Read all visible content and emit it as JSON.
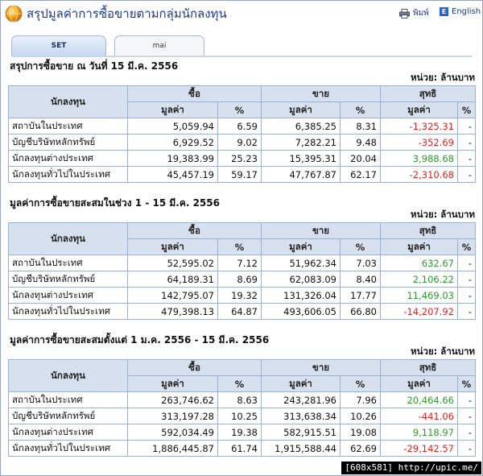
{
  "header": {
    "title": "สรุปมูลค่าการซื้อขายตามกลุ่มนักลงทุน",
    "print_label": "พิมพ์",
    "english_label": "English",
    "english_icon_letter": "E",
    "icons": [
      "globe-icon",
      "printer-icon",
      "english-flag-icon"
    ]
  },
  "tabs": [
    {
      "label": "SET",
      "active": true
    },
    {
      "label": "mai",
      "active": false
    }
  ],
  "columns": {
    "investor": "นักลงทุน",
    "buy": "ซื้อ",
    "sell": "ขาย",
    "net": "สุทธิ",
    "value": "มูลค่า",
    "pct": "%"
  },
  "sections": [
    {
      "title": "สรุปการซื้อขาย ณ วันที่ 15 มี.ค. 2556",
      "unit": "หน่วย: ล้านบาท",
      "rows": [
        {
          "name": "สถาบันในประเทศ",
          "buy": "5,059.94",
          "buy_pct": "6.59",
          "sell": "6,385.25",
          "sell_pct": "8.31",
          "net": "-1,325.31",
          "net_pct": "-"
        },
        {
          "name": "บัญชีบริษัทหลักทรัพย์",
          "buy": "6,929.52",
          "buy_pct": "9.02",
          "sell": "7,282.21",
          "sell_pct": "9.48",
          "net": "-352.69",
          "net_pct": "-"
        },
        {
          "name": "นักลงทุนต่างประเทศ",
          "buy": "19,383.99",
          "buy_pct": "25.23",
          "sell": "15,395.31",
          "sell_pct": "20.04",
          "net": "3,988.68",
          "net_pct": "-"
        },
        {
          "name": "นักลงทุนทั่วไปในประเทศ",
          "buy": "45,457.19",
          "buy_pct": "59.17",
          "sell": "47,767.87",
          "sell_pct": "62.17",
          "net": "-2,310.68",
          "net_pct": "-"
        }
      ]
    },
    {
      "title": "มูลค่าการซื้อขายสะสมในช่วง 1 - 15 มี.ค. 2556",
      "unit": "หน่วย: ล้านบาท",
      "rows": [
        {
          "name": "สถาบันในประเทศ",
          "buy": "52,595.02",
          "buy_pct": "7.12",
          "sell": "51,962.34",
          "sell_pct": "7.03",
          "net": "632.67",
          "net_pct": "-"
        },
        {
          "name": "บัญชีบริษัทหลักทรัพย์",
          "buy": "64,189.31",
          "buy_pct": "8.69",
          "sell": "62,083.09",
          "sell_pct": "8.40",
          "net": "2,106.22",
          "net_pct": "-"
        },
        {
          "name": "นักลงทุนต่างประเทศ",
          "buy": "142,795.07",
          "buy_pct": "19.32",
          "sell": "131,326.04",
          "sell_pct": "17.77",
          "net": "11,469.03",
          "net_pct": "-"
        },
        {
          "name": "นักลงทุนทั่วไปในประเทศ",
          "buy": "479,398.13",
          "buy_pct": "64.87",
          "sell": "493,606.05",
          "sell_pct": "66.80",
          "net": "-14,207.92",
          "net_pct": "-"
        }
      ]
    },
    {
      "title": "มูลค่าการซื้อขายสะสมตั้งแต่ 1 ม.ค. 2556 - 15 มี.ค. 2556",
      "unit": "หน่วย: ล้านบาท",
      "rows": [
        {
          "name": "สถาบันในประเทศ",
          "buy": "263,746.62",
          "buy_pct": "8.63",
          "sell": "243,281.96",
          "sell_pct": "7.96",
          "net": "20,464.66",
          "net_pct": "-"
        },
        {
          "name": "บัญชีบริษัทหลักทรัพย์",
          "buy": "313,197.28",
          "buy_pct": "10.25",
          "sell": "313,638.34",
          "sell_pct": "10.26",
          "net": "-441.06",
          "net_pct": "-"
        },
        {
          "name": "นักลงทุนต่างประเทศ",
          "buy": "592,034.49",
          "buy_pct": "19.38",
          "sell": "582,915.51",
          "sell_pct": "19.08",
          "net": "9,118.97",
          "net_pct": "-"
        },
        {
          "name": "นักลงทุนทั่วไปในประเทศ",
          "buy": "1,886,445.87",
          "buy_pct": "61.74",
          "sell": "1,915,588.44",
          "sell_pct": "62.69",
          "net": "-29,142.57",
          "net_pct": "-"
        }
      ]
    }
  ],
  "footer": {
    "badge": "[608x581] http://upic.me/"
  },
  "colors": {
    "positive": "#2c9a2c",
    "negative": "#e02020",
    "header_bg": "#d7e0ee",
    "title": "#1d3a8a"
  }
}
